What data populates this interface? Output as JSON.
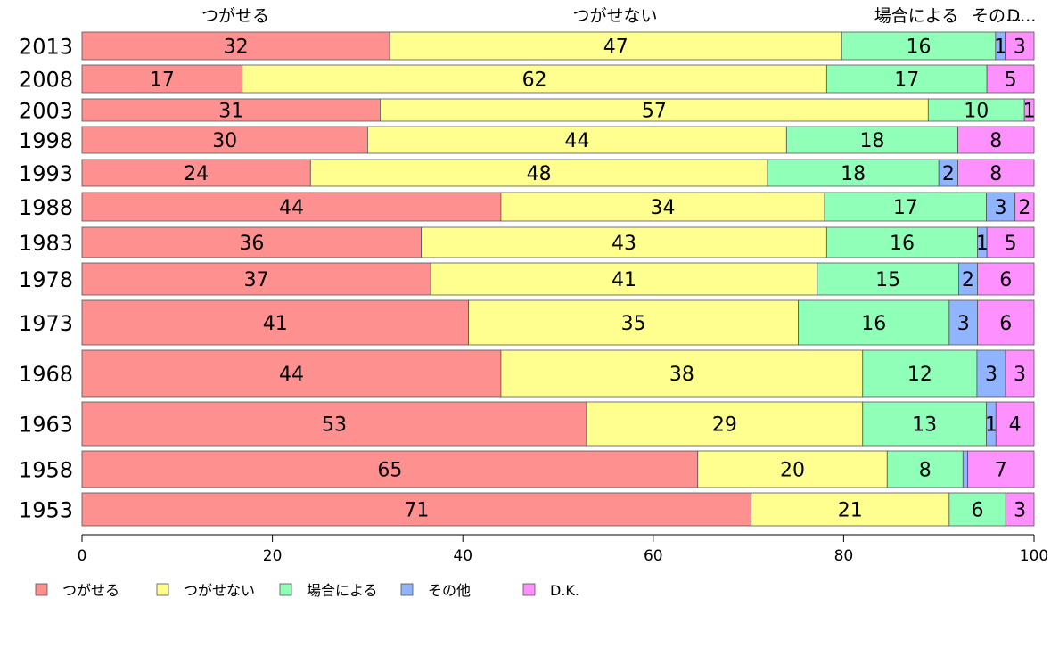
{
  "chart_data": {
    "type": "bar",
    "orientation": "horizontal",
    "stacked": true,
    "categories": [
      "2013",
      "2008",
      "2003",
      "1998",
      "1993",
      "1988",
      "1983",
      "1978",
      "1973",
      "1968",
      "1963",
      "1958",
      "1953"
    ],
    "series": [
      {
        "name": "つがせる",
        "color": "#ff9090",
        "values": [
          32,
          17,
          31,
          30,
          24,
          44,
          36,
          37,
          41,
          44,
          53,
          65,
          71
        ],
        "labels": [
          "32",
          "17",
          "31",
          "30",
          "24",
          "44",
          "36",
          "37",
          "41",
          "44",
          "53",
          "65",
          "71"
        ]
      },
      {
        "name": "つがせない",
        "color": "#ffff90",
        "values": [
          47,
          62,
          57,
          44,
          48,
          34,
          43,
          41,
          35,
          38,
          29,
          20,
          21
        ],
        "labels": [
          "47",
          "62",
          "57",
          "44",
          "48",
          "34",
          "43",
          "41",
          "35",
          "38",
          "29",
          "20",
          "21"
        ]
      },
      {
        "name": "場合による",
        "color": "#90ffb8",
        "values": [
          16,
          17,
          10,
          18,
          18,
          17,
          16,
          15,
          16,
          12,
          13,
          8,
          6
        ],
        "labels": [
          "16",
          "17",
          "10",
          "18",
          "18",
          "17",
          "16",
          "15",
          "16",
          "12",
          "13",
          "8",
          "6"
        ]
      },
      {
        "name": "その他",
        "color": "#90b4ff",
        "values": [
          1,
          0,
          0,
          0,
          2,
          3,
          1,
          2,
          3,
          3,
          1,
          0.5,
          0
        ],
        "labels": [
          "1",
          "",
          "",
          "",
          "2",
          "3",
          "1",
          "2",
          "3",
          "3",
          "1",
          "",
          ""
        ]
      },
      {
        "name": "D.K.",
        "color": "#ff90ff",
        "values": [
          3,
          5,
          1,
          8,
          8,
          2,
          5,
          6,
          6,
          3,
          4,
          7,
          3
        ],
        "labels": [
          "3",
          "5",
          "1",
          "8",
          "8",
          "2",
          "5",
          "6",
          "6",
          "3",
          "4",
          "7",
          "3"
        ]
      }
    ],
    "top_labels": [
      "つがせる",
      "つがせない",
      "場合による",
      "その...",
      "D..."
    ],
    "xlim": [
      0,
      100
    ],
    "xticks": [
      "0",
      "20",
      "40",
      "60",
      "80",
      "100"
    ],
    "grid": false,
    "legend_position": "bottom-left"
  }
}
